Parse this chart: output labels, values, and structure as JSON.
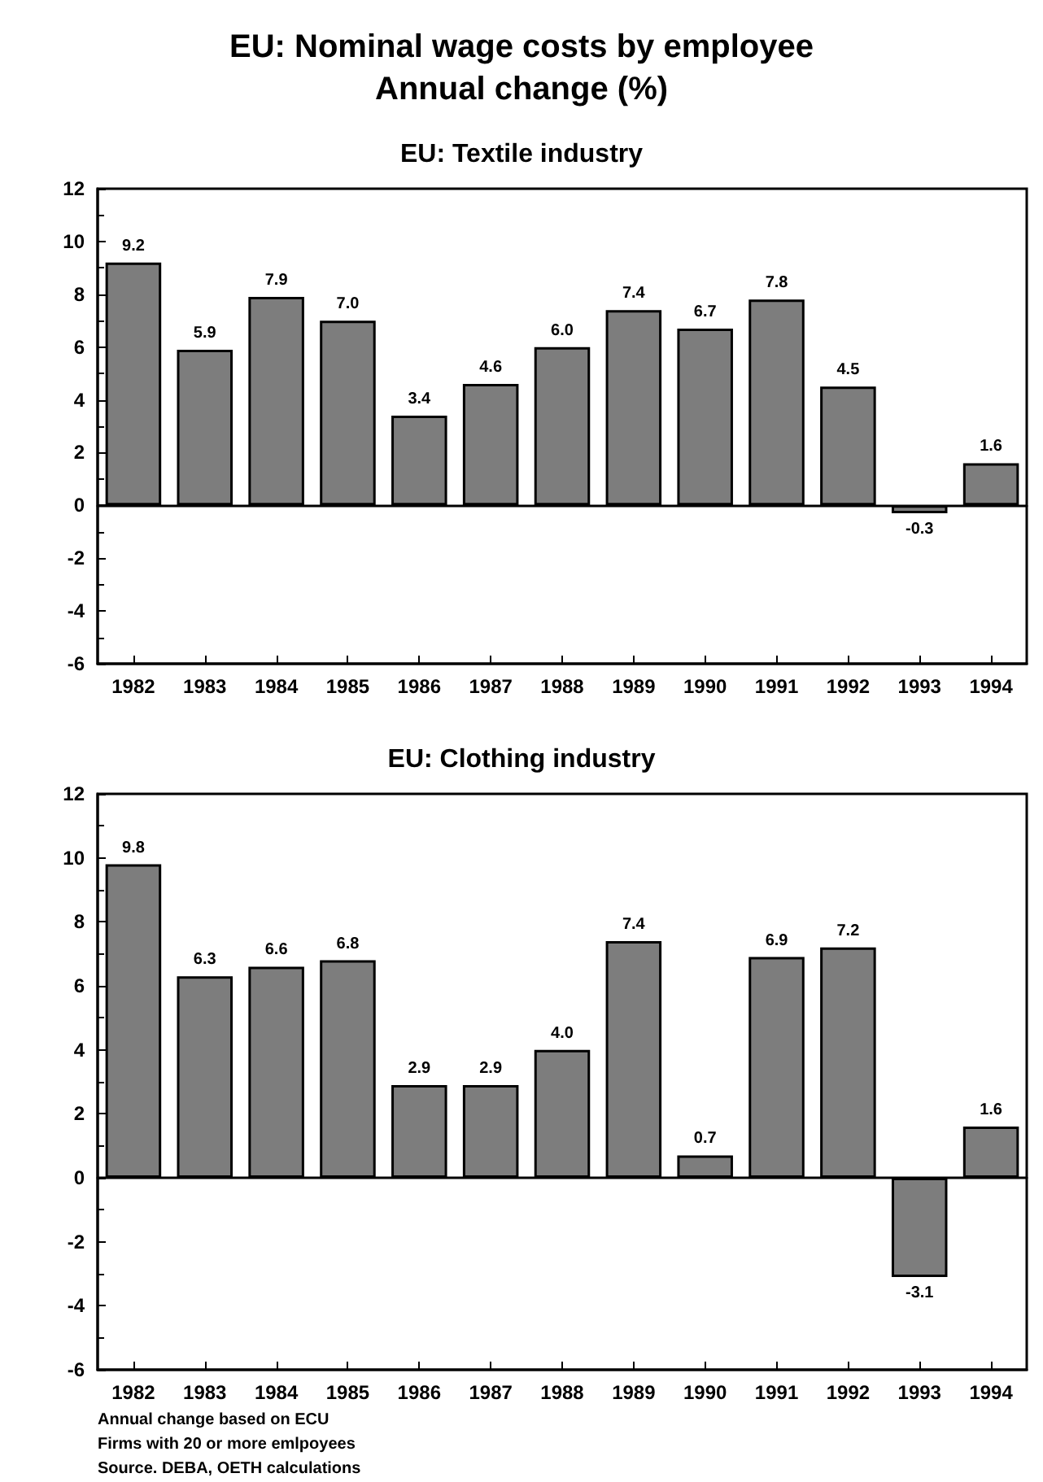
{
  "chart_data": [
    {
      "type": "bar",
      "title": "EU: Nominal wage costs by employee",
      "subtitle": "Annual change (%)",
      "annotations": [
        "EU: Textile industry"
      ],
      "categories": [
        "1982",
        "1983",
        "1984",
        "1985",
        "1986",
        "1987",
        "1988",
        "1989",
        "1990",
        "1991",
        "1992",
        "1993",
        "1994"
      ],
      "values": [
        9.2,
        5.9,
        7.9,
        7.0,
        3.4,
        4.6,
        6.0,
        7.4,
        6.7,
        7.8,
        4.5,
        -0.3,
        1.6
      ],
      "value_labels": [
        "9.2",
        "5.9",
        "7.9",
        "7.0",
        "3.4",
        "4.6",
        "6.0",
        "7.4",
        "6.7",
        "7.8",
        "4.5",
        "-0.3",
        "1.6"
      ],
      "color": "#7d7d7d",
      "ylim": [
        -6,
        12
      ],
      "yticks": [
        -6,
        -4,
        -2,
        0,
        2,
        4,
        6,
        8,
        10,
        12
      ]
    },
    {
      "type": "bar",
      "title": "EU: Clothing industry",
      "annotations": [
        "Annual change based on ECU",
        "Firms with 20 or more emlpoyees",
        "Source. DEBA, OETH calculations"
      ],
      "categories": [
        "1982",
        "1983",
        "1984",
        "1985",
        "1986",
        "1987",
        "1988",
        "1989",
        "1990",
        "1991",
        "1992",
        "1993",
        "1994"
      ],
      "values": [
        9.8,
        6.3,
        6.6,
        6.8,
        2.9,
        2.9,
        4.0,
        7.4,
        0.7,
        6.9,
        7.2,
        -3.1,
        1.6
      ],
      "value_labels": [
        "9.8",
        "6.3",
        "6.6",
        "6.8",
        "2.9",
        "2.9",
        "4.0",
        "7.4",
        "0.7",
        "6.9",
        "7.2",
        "-3.1",
        "1.6"
      ],
      "color": "#7d7d7d",
      "ylim": [
        -6,
        12
      ],
      "yticks": [
        -6,
        -4,
        -2,
        0,
        2,
        4,
        6,
        8,
        10,
        12
      ]
    }
  ]
}
